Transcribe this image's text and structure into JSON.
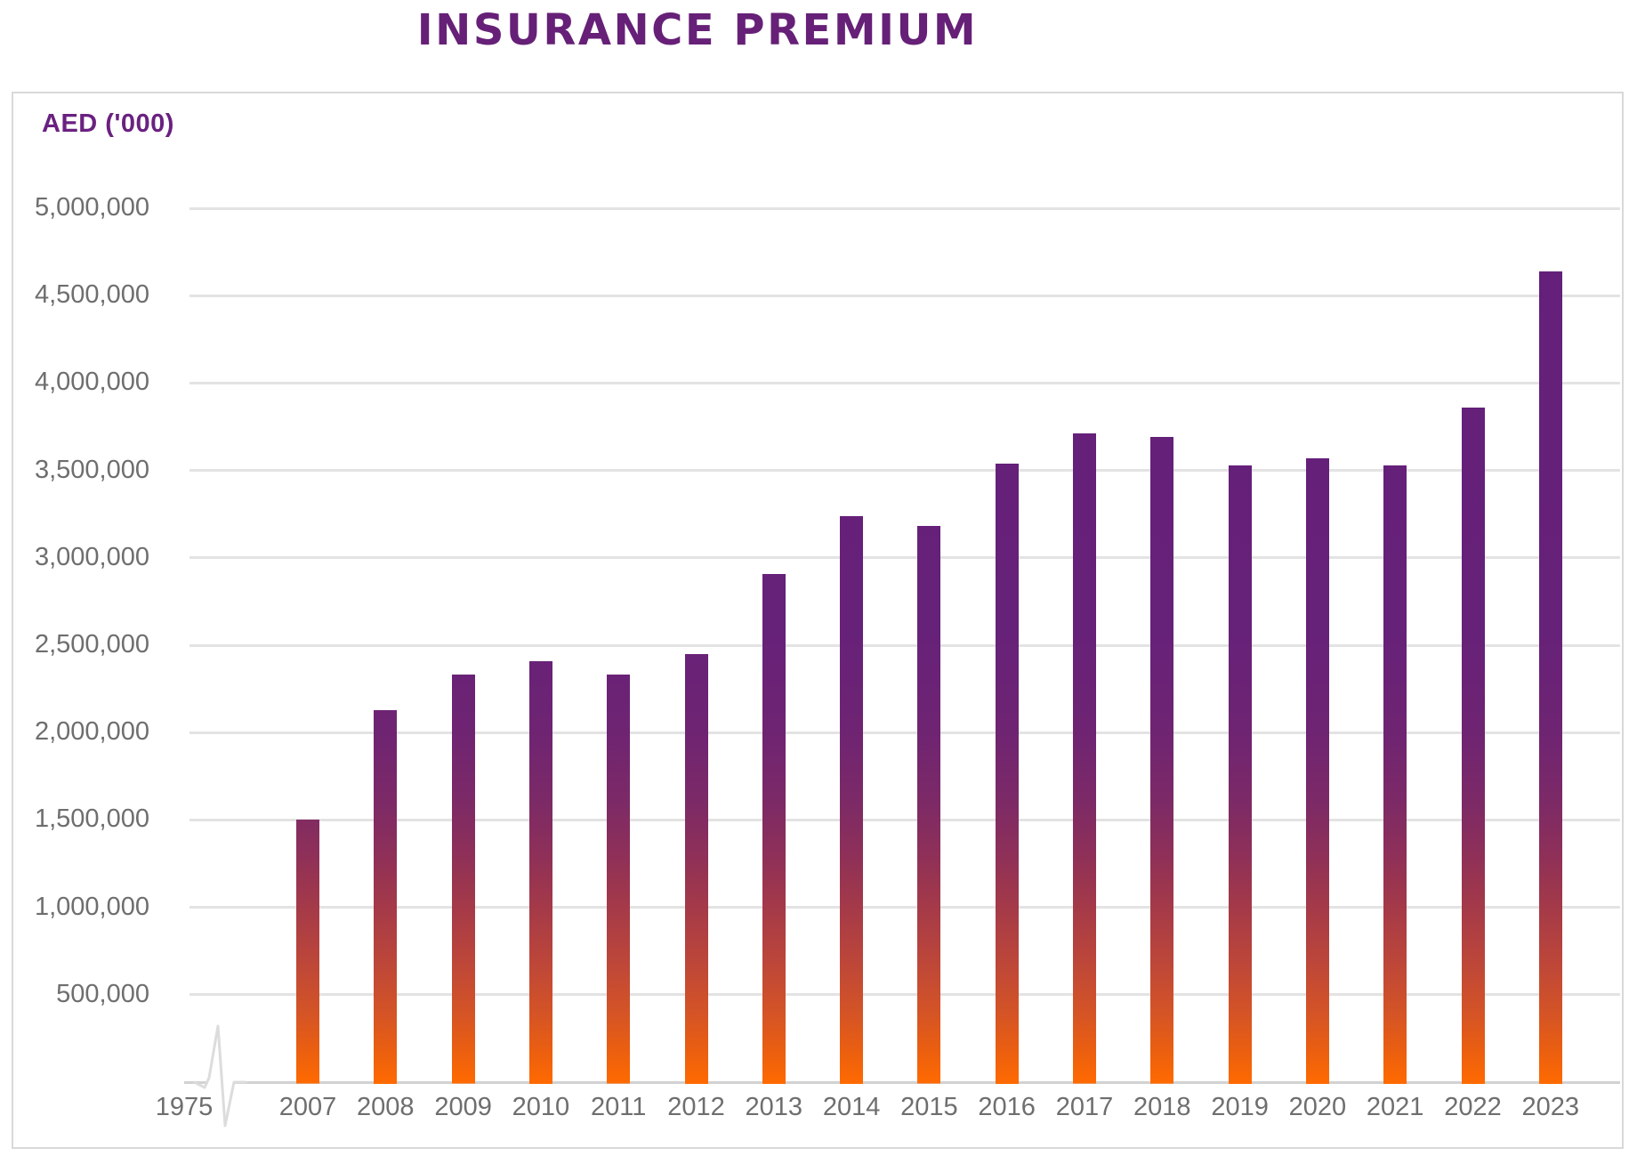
{
  "title": "INSURANCE PREMIUM",
  "axis_unit_label": "AED ('000)",
  "x_axis_origin_label": "1975",
  "chart_data": {
    "type": "bar",
    "title": "INSURANCE PREMIUM",
    "ylabel": "AED ('000)",
    "xlabel": "",
    "ylim": [
      0,
      5000000
    ],
    "ytick_step": 500000,
    "ytick_labels": [
      "5,000,000",
      "4,500,000",
      "4,000,000",
      "3,500,000",
      "3,000,000",
      "2,500,000",
      "2,000,000",
      "1,500,000",
      "1,000,000",
      "500,000"
    ],
    "grid": true,
    "axis_break_before_first_category": true,
    "categories": [
      "2007",
      "2008",
      "2009",
      "2010",
      "2011",
      "2012",
      "2013",
      "2014",
      "2015",
      "2016",
      "2017",
      "2018",
      "2019",
      "2020",
      "2021",
      "2022",
      "2023"
    ],
    "values": [
      1510000,
      2140000,
      2340000,
      2420000,
      2340000,
      2460000,
      2920000,
      3250000,
      3190000,
      3550000,
      3720000,
      3700000,
      3540000,
      3580000,
      3540000,
      3870000,
      4650000
    ],
    "colors": {
      "title": "#662077",
      "unit_label": "#6A2180",
      "bar_gradient_top": "#662179",
      "bar_gradient_bottom": "#FF6A00",
      "axis_text": "#6E6E6E",
      "gridline": "#E3E3E3",
      "panel_border": "#D9D9D9"
    }
  }
}
